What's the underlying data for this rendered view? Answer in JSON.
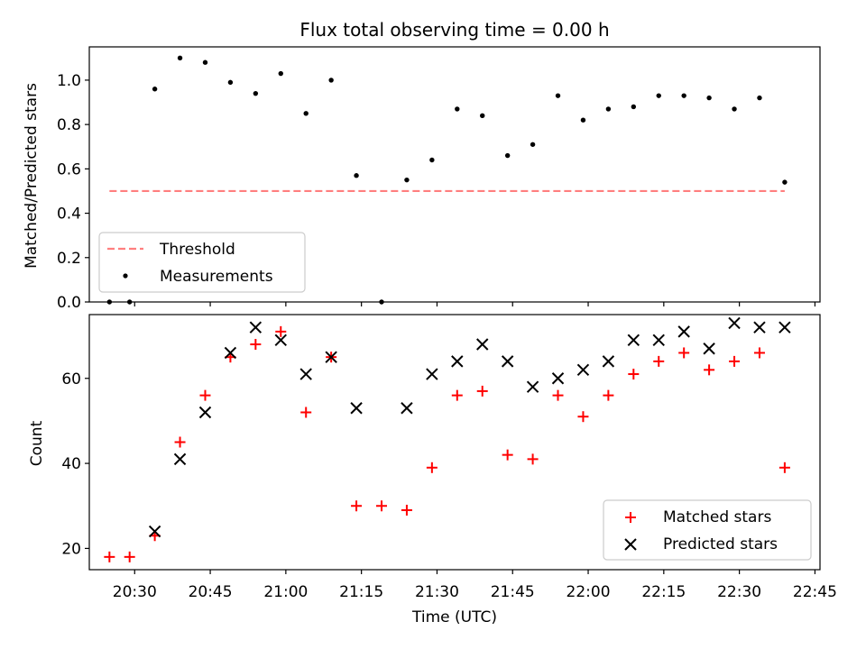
{
  "chart_data": [
    {
      "type": "scatter",
      "title": "Flux total observing time = 0.00 h",
      "xlabel": "",
      "ylabel": "Matched/Predicted stars",
      "xlim": [
        "20:21",
        "22:46"
      ],
      "ylim": [
        0,
        1.15
      ],
      "yticks": [
        0.0,
        0.2,
        0.4,
        0.6,
        0.8,
        1.0
      ],
      "ytick_labels": [
        "0.0",
        "0.2",
        "0.4",
        "0.6",
        "0.8",
        "1.0"
      ],
      "legend_position": "lower-left",
      "series": [
        {
          "name": "Threshold",
          "style": "dashed-line",
          "color": "#ff7f7f",
          "x": [
            "20:25",
            "22:39"
          ],
          "y": [
            0.5,
            0.5
          ]
        },
        {
          "name": "Measurements",
          "style": "dot",
          "color": "#000000",
          "x": [
            "20:25",
            "20:29",
            "20:34",
            "20:39",
            "20:44",
            "20:49",
            "20:54",
            "20:59",
            "21:04",
            "21:09",
            "21:14",
            "21:19",
            "21:24",
            "21:29",
            "21:34",
            "21:39",
            "21:44",
            "21:49",
            "21:54",
            "21:59",
            "22:04",
            "22:09",
            "22:14",
            "22:19",
            "22:24",
            "22:29",
            "22:34",
            "22:39"
          ],
          "y": [
            0.0,
            0.0,
            0.96,
            1.1,
            1.08,
            0.99,
            0.94,
            1.03,
            0.85,
            1.0,
            0.57,
            0.0,
            0.55,
            0.64,
            0.87,
            0.84,
            0.66,
            0.71,
            0.93,
            0.82,
            0.87,
            0.88,
            0.93,
            0.93,
            0.92,
            0.87,
            0.92,
            0.54
          ]
        }
      ]
    },
    {
      "type": "scatter",
      "title": "",
      "xlabel": "Time (UTC)",
      "ylabel": "Count",
      "xlim": [
        "20:21",
        "22:46"
      ],
      "ylim": [
        15,
        75
      ],
      "xtick_labels": [
        "20:30",
        "20:45",
        "21:00",
        "21:15",
        "21:30",
        "21:45",
        "22:00",
        "22:15",
        "22:30",
        "22:45"
      ],
      "yticks": [
        20,
        40,
        60
      ],
      "ytick_labels": [
        "20",
        "40",
        "60"
      ],
      "legend_position": "lower-right",
      "series": [
        {
          "name": "Matched stars",
          "marker": "plus",
          "color": "#ff0000",
          "x": [
            "20:25",
            "20:29",
            "20:34",
            "20:39",
            "20:44",
            "20:49",
            "20:54",
            "20:59",
            "21:04",
            "21:09",
            "21:14",
            "21:19",
            "21:24",
            "21:29",
            "21:34",
            "21:39",
            "21:44",
            "21:49",
            "21:54",
            "21:59",
            "22:04",
            "22:09",
            "22:14",
            "22:19",
            "22:24",
            "22:29",
            "22:34",
            "22:39"
          ],
          "y": [
            18,
            18,
            23,
            45,
            56,
            65,
            68,
            71,
            52,
            65,
            30,
            30,
            29,
            39,
            56,
            57,
            42,
            41,
            56,
            51,
            56,
            61,
            64,
            66,
            62,
            64,
            66,
            39
          ]
        },
        {
          "name": "Predicted stars",
          "marker": "x",
          "color": "#000000",
          "x": [
            "20:34",
            "20:39",
            "20:44",
            "20:49",
            "20:54",
            "20:59",
            "21:04",
            "21:09",
            "21:14",
            "21:24",
            "21:29",
            "21:34",
            "21:39",
            "21:44",
            "21:49",
            "21:54",
            "21:59",
            "22:04",
            "22:09",
            "22:14",
            "22:19",
            "22:24",
            "22:29",
            "22:34",
            "22:39"
          ],
          "y": [
            24,
            41,
            52,
            66,
            72,
            69,
            61,
            65,
            53,
            53,
            61,
            64,
            68,
            64,
            58,
            60,
            62,
            64,
            69,
            69,
            71,
            67,
            73,
            72,
            72
          ]
        }
      ]
    }
  ]
}
